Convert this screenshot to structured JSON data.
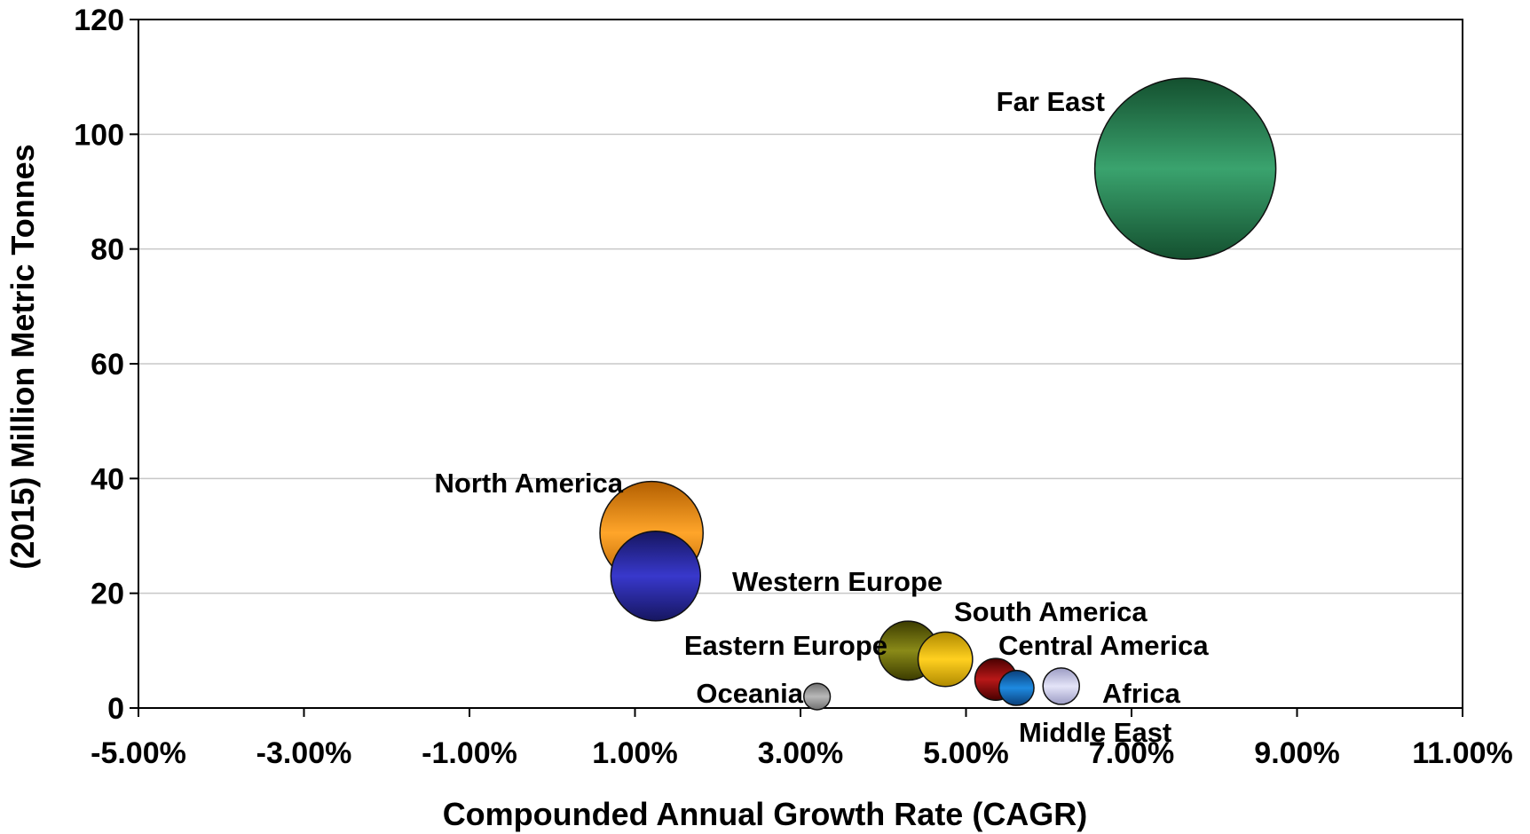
{
  "chart_data": {
    "type": "scatter",
    "title": "",
    "xlabel": "Compounded Annual Growth Rate (CAGR)",
    "ylabel": "(2015) Million Metric Tonnes",
    "xlim": [
      -0.05,
      0.11
    ],
    "ylim": [
      0,
      120
    ],
    "x_ticks": [
      {
        "value": -0.05,
        "label": "-5.00%"
      },
      {
        "value": -0.03,
        "label": "-3.00%"
      },
      {
        "value": -0.01,
        "label": "-1.00%"
      },
      {
        "value": 0.01,
        "label": "1.00%"
      },
      {
        "value": 0.03,
        "label": "3.00%"
      },
      {
        "value": 0.05,
        "label": "5.00%"
      },
      {
        "value": 0.07,
        "label": "7.00%"
      },
      {
        "value": 0.09,
        "label": "9.00%"
      },
      {
        "value": 0.11,
        "label": "11.00%"
      }
    ],
    "y_ticks": [
      {
        "value": 0,
        "label": "0"
      },
      {
        "value": 20,
        "label": "20"
      },
      {
        "value": 40,
        "label": "40"
      },
      {
        "value": 60,
        "label": "60"
      },
      {
        "value": 80,
        "label": "80"
      },
      {
        "value": 100,
        "label": "100"
      },
      {
        "value": 120,
        "label": "120"
      }
    ],
    "grid": "horizontal",
    "legend": "none",
    "series": [
      {
        "name": "Far East",
        "x": 0.0765,
        "y": 94,
        "size": 94,
        "color_light": "#3aa36e",
        "color_dark": "#14502f",
        "label_pos": "upper-left"
      },
      {
        "name": "North America",
        "x": 0.012,
        "y": 30.5,
        "size": 30.5,
        "color_light": "#ffa52a",
        "color_dark": "#b35f00",
        "label_pos": "upper-left"
      },
      {
        "name": "Western Europe",
        "x": 0.0125,
        "y": 23,
        "size": 23,
        "color_light": "#3838cc",
        "color_dark": "#161660",
        "label_pos": "right"
      },
      {
        "name": "Eastern Europe",
        "x": 0.043,
        "y": 10,
        "size": 10,
        "color_light": "#8a8a18",
        "color_dark": "#3c3c00",
        "label_pos": "left"
      },
      {
        "name": "South America",
        "x": 0.0475,
        "y": 8.5,
        "size": 8.5,
        "color_light": "#ffd020",
        "color_dark": "#b08a00",
        "label_pos": "upper-right"
      },
      {
        "name": "Central America",
        "x": 0.0536,
        "y": 5,
        "size": 5,
        "color_light": "#b81818",
        "color_dark": "#4a0000",
        "label_pos": "upper-right"
      },
      {
        "name": "Middle East",
        "x": 0.0561,
        "y": 3.5,
        "size": 3.5,
        "color_light": "#1e8ae0",
        "color_dark": "#0a3f7a",
        "label_pos": "below"
      },
      {
        "name": "Africa",
        "x": 0.0615,
        "y": 3.8,
        "size": 3.8,
        "color_light": "#e4e4f8",
        "color_dark": "#9c9cc4",
        "label_pos": "lower-right"
      },
      {
        "name": "Oceania",
        "x": 0.032,
        "y": 2,
        "size": 2,
        "color_light": "#b8b8b8",
        "color_dark": "#707070",
        "label_pos": "left"
      }
    ]
  }
}
